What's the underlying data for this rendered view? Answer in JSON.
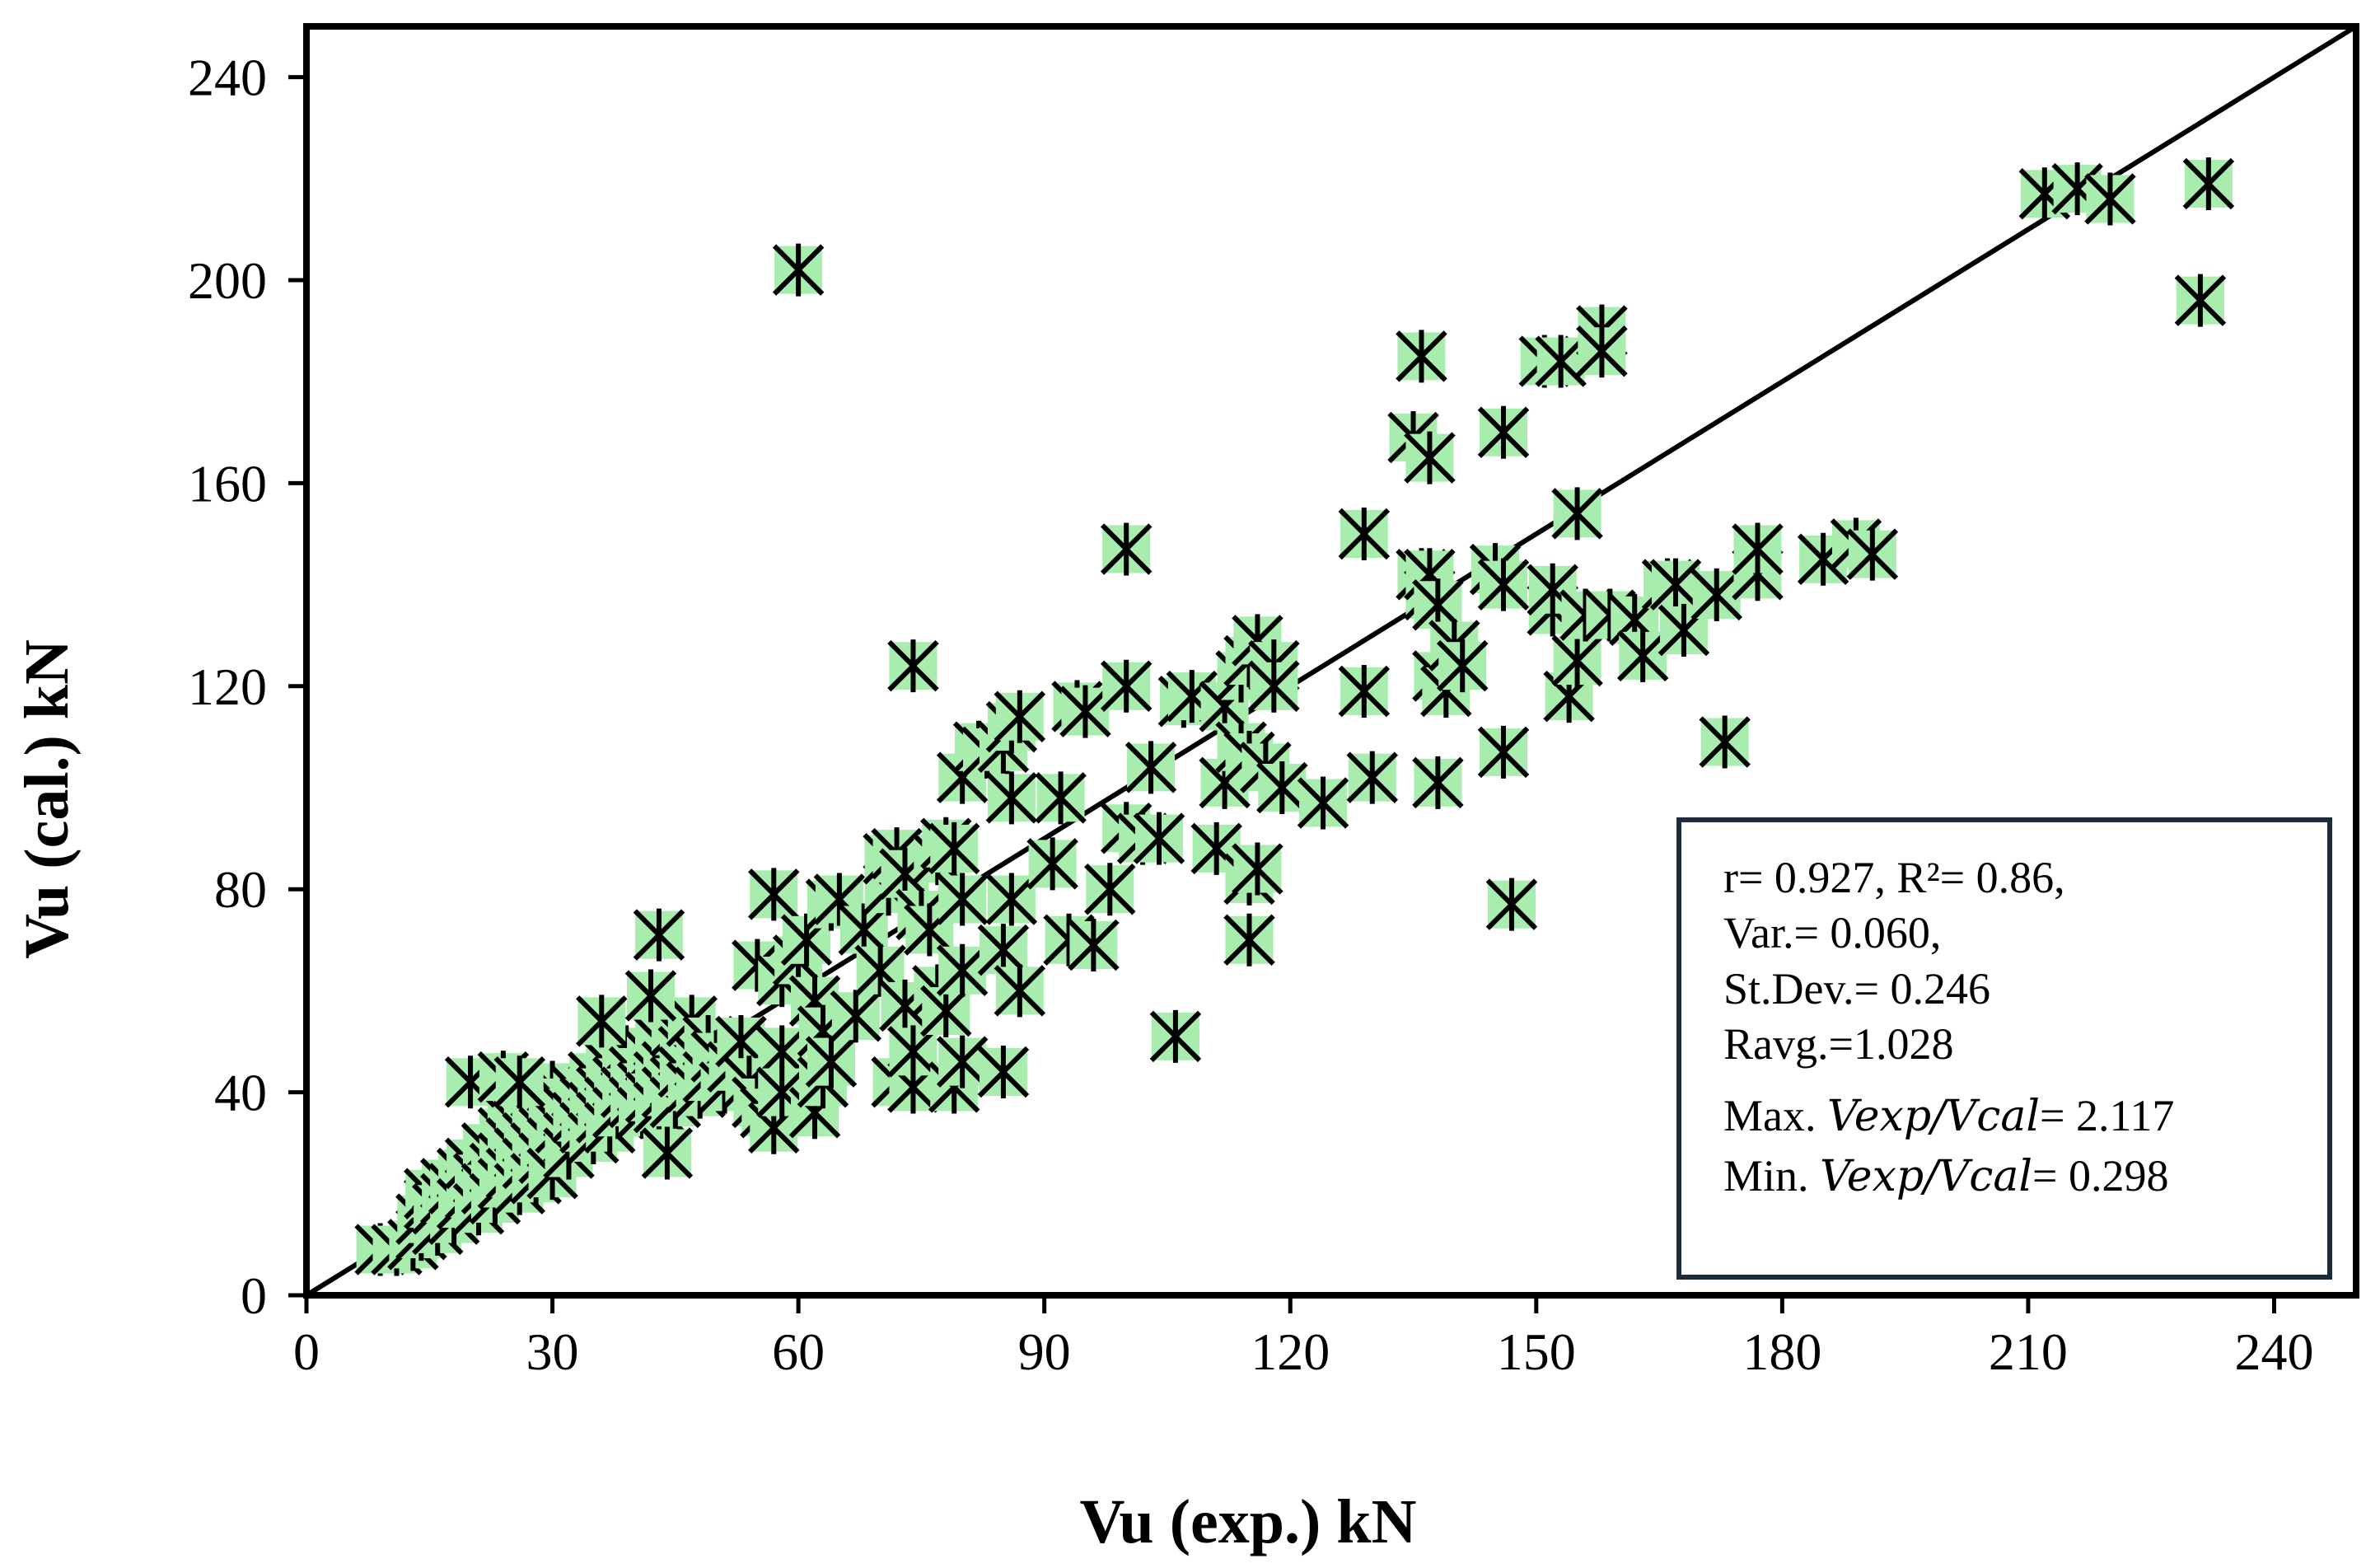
{
  "chart_data": {
    "type": "scatter",
    "title": "",
    "xlabel": "Vu (exp.) kN",
    "ylabel": "Vu (cal.) kN",
    "xlim": [
      0,
      250
    ],
    "ylim": [
      0,
      250
    ],
    "xticks": [
      0,
      30,
      60,
      90,
      120,
      150,
      180,
      210,
      240
    ],
    "yticks": [
      0,
      40,
      80,
      120,
      160,
      200,
      240
    ],
    "x_tick_labels": [
      "0",
      "30",
      "60",
      "90",
      "120",
      "150",
      "180",
      "210",
      "240"
    ],
    "y_tick_labels": [
      "0",
      "40",
      "80",
      "120",
      "160",
      "200",
      "240"
    ],
    "reference_line": {
      "label": "1:1 line",
      "from": [
        0,
        0
      ],
      "to": [
        250,
        250
      ]
    },
    "marker_color": "#a8ecae",
    "series": [
      {
        "name": "Vu",
        "points": [
          [
            9,
            9
          ],
          [
            11,
            9
          ],
          [
            13,
            10
          ],
          [
            14,
            12
          ],
          [
            14,
            15
          ],
          [
            15,
            18
          ],
          [
            15,
            20
          ],
          [
            16,
            13
          ],
          [
            16,
            17
          ],
          [
            17,
            22
          ],
          [
            17,
            19
          ],
          [
            18,
            15
          ],
          [
            18,
            21
          ],
          [
            19,
            24
          ],
          [
            19,
            18
          ],
          [
            20,
            20
          ],
          [
            20,
            26
          ],
          [
            21,
            23
          ],
          [
            21,
            17
          ],
          [
            22,
            29
          ],
          [
            22,
            21
          ],
          [
            23,
            25
          ],
          [
            23,
            19
          ],
          [
            24,
            32
          ],
          [
            24,
            27
          ],
          [
            24,
            22
          ],
          [
            25,
            35
          ],
          [
            25,
            30
          ],
          [
            25,
            24
          ],
          [
            26,
            38
          ],
          [
            26,
            33
          ],
          [
            26,
            28
          ],
          [
            26,
            21
          ],
          [
            27,
            36
          ],
          [
            27,
            31
          ],
          [
            27,
            26
          ],
          [
            28,
            40
          ],
          [
            28,
            34
          ],
          [
            28,
            29
          ],
          [
            28,
            23
          ],
          [
            29,
            37
          ],
          [
            29,
            32
          ],
          [
            29,
            27
          ],
          [
            30,
            41
          ],
          [
            30,
            35
          ],
          [
            30,
            30
          ],
          [
            30,
            24
          ],
          [
            31,
            38
          ],
          [
            31,
            33
          ],
          [
            32,
            36
          ],
          [
            32,
            31
          ],
          [
            32,
            28
          ],
          [
            33,
            40
          ],
          [
            33,
            35
          ],
          [
            34,
            38
          ],
          [
            34,
            33
          ],
          [
            35,
            43
          ],
          [
            35,
            37
          ],
          [
            35,
            31
          ],
          [
            36,
            40
          ],
          [
            36,
            35
          ],
          [
            37,
            45
          ],
          [
            37,
            38
          ],
          [
            37,
            33
          ],
          [
            38,
            42
          ],
          [
            38,
            36
          ],
          [
            39,
            48
          ],
          [
            39,
            40
          ],
          [
            40,
            44
          ],
          [
            40,
            38
          ],
          [
            41,
            41
          ],
          [
            41,
            36
          ],
          [
            42,
            47
          ],
          [
            42,
            39
          ],
          [
            43,
            50
          ],
          [
            43,
            43
          ],
          [
            43,
            37
          ],
          [
            44,
            45
          ],
          [
            44,
            40
          ],
          [
            45,
            52
          ],
          [
            45,
            42
          ],
          [
            45,
            38
          ],
          [
            46,
            48
          ],
          [
            46,
            44
          ],
          [
            47,
            41
          ],
          [
            47,
            54
          ],
          [
            48,
            46
          ],
          [
            48,
            40
          ],
          [
            49,
            50
          ],
          [
            49,
            43
          ],
          [
            50,
            47
          ],
          [
            51,
            41
          ],
          [
            52,
            45
          ],
          [
            53,
            50
          ],
          [
            54,
            42
          ],
          [
            55,
            38
          ],
          [
            56,
            36
          ],
          [
            57,
            33
          ],
          [
            58,
            48
          ],
          [
            58,
            40
          ],
          [
            20,
            42
          ],
          [
            24,
            43
          ],
          [
            26,
            42
          ],
          [
            36,
            54
          ],
          [
            42,
            59
          ],
          [
            43,
            71
          ],
          [
            44,
            28
          ],
          [
            55,
            65
          ],
          [
            57,
            79
          ],
          [
            58,
            62
          ],
          [
            60,
            66
          ],
          [
            61,
            70
          ],
          [
            62,
            58
          ],
          [
            62,
            36
          ],
          [
            63,
            42
          ],
          [
            63,
            52
          ],
          [
            64,
            46
          ],
          [
            64,
            77
          ],
          [
            65,
            78
          ],
          [
            67,
            55
          ],
          [
            68,
            72
          ],
          [
            70,
            64
          ],
          [
            71,
            80
          ],
          [
            71,
            86
          ],
          [
            72,
            87
          ],
          [
            72,
            42
          ],
          [
            73,
            57
          ],
          [
            73,
            83
          ],
          [
            74,
            41
          ],
          [
            74,
            48
          ],
          [
            74,
            124
          ],
          [
            75,
            75
          ],
          [
            76,
            72
          ],
          [
            77,
            60
          ],
          [
            77,
            86
          ],
          [
            78,
            89
          ],
          [
            78,
            56
          ],
          [
            79,
            88
          ],
          [
            79,
            41
          ],
          [
            80,
            102
          ],
          [
            80,
            78
          ],
          [
            80,
            64
          ],
          [
            80,
            46
          ],
          [
            82,
            108
          ],
          [
            83,
            107
          ],
          [
            85,
            68
          ],
          [
            85,
            108
          ],
          [
            85,
            44
          ],
          [
            86,
            112
          ],
          [
            86,
            98
          ],
          [
            86,
            78
          ],
          [
            87,
            60
          ],
          [
            87,
            114
          ],
          [
            91,
            85
          ],
          [
            92,
            98
          ],
          [
            93,
            70
          ],
          [
            94,
            116
          ],
          [
            95,
            115
          ],
          [
            96,
            69
          ],
          [
            98,
            80
          ],
          [
            100,
            92
          ],
          [
            100,
            120
          ],
          [
            100,
            147
          ],
          [
            102,
            90
          ],
          [
            103,
            104
          ],
          [
            104,
            90
          ],
          [
            106,
            51
          ],
          [
            107,
            117
          ],
          [
            108,
            118
          ],
          [
            111,
            88
          ],
          [
            112,
            101
          ],
          [
            112,
            116
          ],
          [
            114,
            108
          ],
          [
            114,
            122
          ],
          [
            115,
            125
          ],
          [
            115,
            82
          ],
          [
            115,
            70
          ],
          [
            115,
            106
          ],
          [
            116,
            129
          ],
          [
            116,
            84
          ],
          [
            117,
            104
          ],
          [
            118,
            124
          ],
          [
            118,
            120
          ],
          [
            119,
            100
          ],
          [
            124,
            97
          ],
          [
            129,
            150
          ],
          [
            129,
            119
          ],
          [
            130,
            102
          ],
          [
            135,
            169
          ],
          [
            136,
            185
          ],
          [
            136,
            142
          ],
          [
            137,
            138
          ],
          [
            137,
            165
          ],
          [
            137,
            142
          ],
          [
            138,
            122
          ],
          [
            138,
            101
          ],
          [
            138,
            136
          ],
          [
            139,
            119
          ],
          [
            140,
            128
          ],
          [
            141,
            124
          ],
          [
            145,
            143
          ],
          [
            146,
            140
          ],
          [
            146,
            107
          ],
          [
            146,
            170
          ],
          [
            147,
            77
          ],
          [
            151,
            184
          ],
          [
            152,
            135
          ],
          [
            152,
            139
          ],
          [
            153,
            184
          ],
          [
            154,
            118
          ],
          [
            155,
            125
          ],
          [
            155,
            154
          ],
          [
            156,
            134
          ],
          [
            158,
            190
          ],
          [
            158,
            186
          ],
          [
            159,
            134
          ],
          [
            162,
            133
          ],
          [
            163,
            126
          ],
          [
            166,
            140
          ],
          [
            167,
            140
          ],
          [
            168,
            131
          ],
          [
            172,
            138
          ],
          [
            173,
            109
          ],
          [
            177,
            142
          ],
          [
            177,
            147
          ],
          [
            185,
            145
          ],
          [
            189,
            148
          ],
          [
            191,
            146
          ],
          [
            212,
            217
          ],
          [
            216,
            218
          ],
          [
            220,
            216
          ],
          [
            231,
            196
          ],
          [
            232,
            219
          ],
          [
            60,
            202
          ]
        ]
      }
    ],
    "stats_box": {
      "line1": "r= 0.927, R²= 0.86,",
      "line2": "Var.= 0.060,",
      "line3": "St.Dev.= 0.246",
      "line4": "Ravg.=1.028",
      "line5_prefix": "Max. ",
      "line5_formula": "Vexp/Vcal",
      "line5_value": "= 2.117",
      "line6_prefix": "Min. ",
      "line6_formula": "Vexp/Vcal",
      "line6_value": "= 0.298"
    }
  }
}
